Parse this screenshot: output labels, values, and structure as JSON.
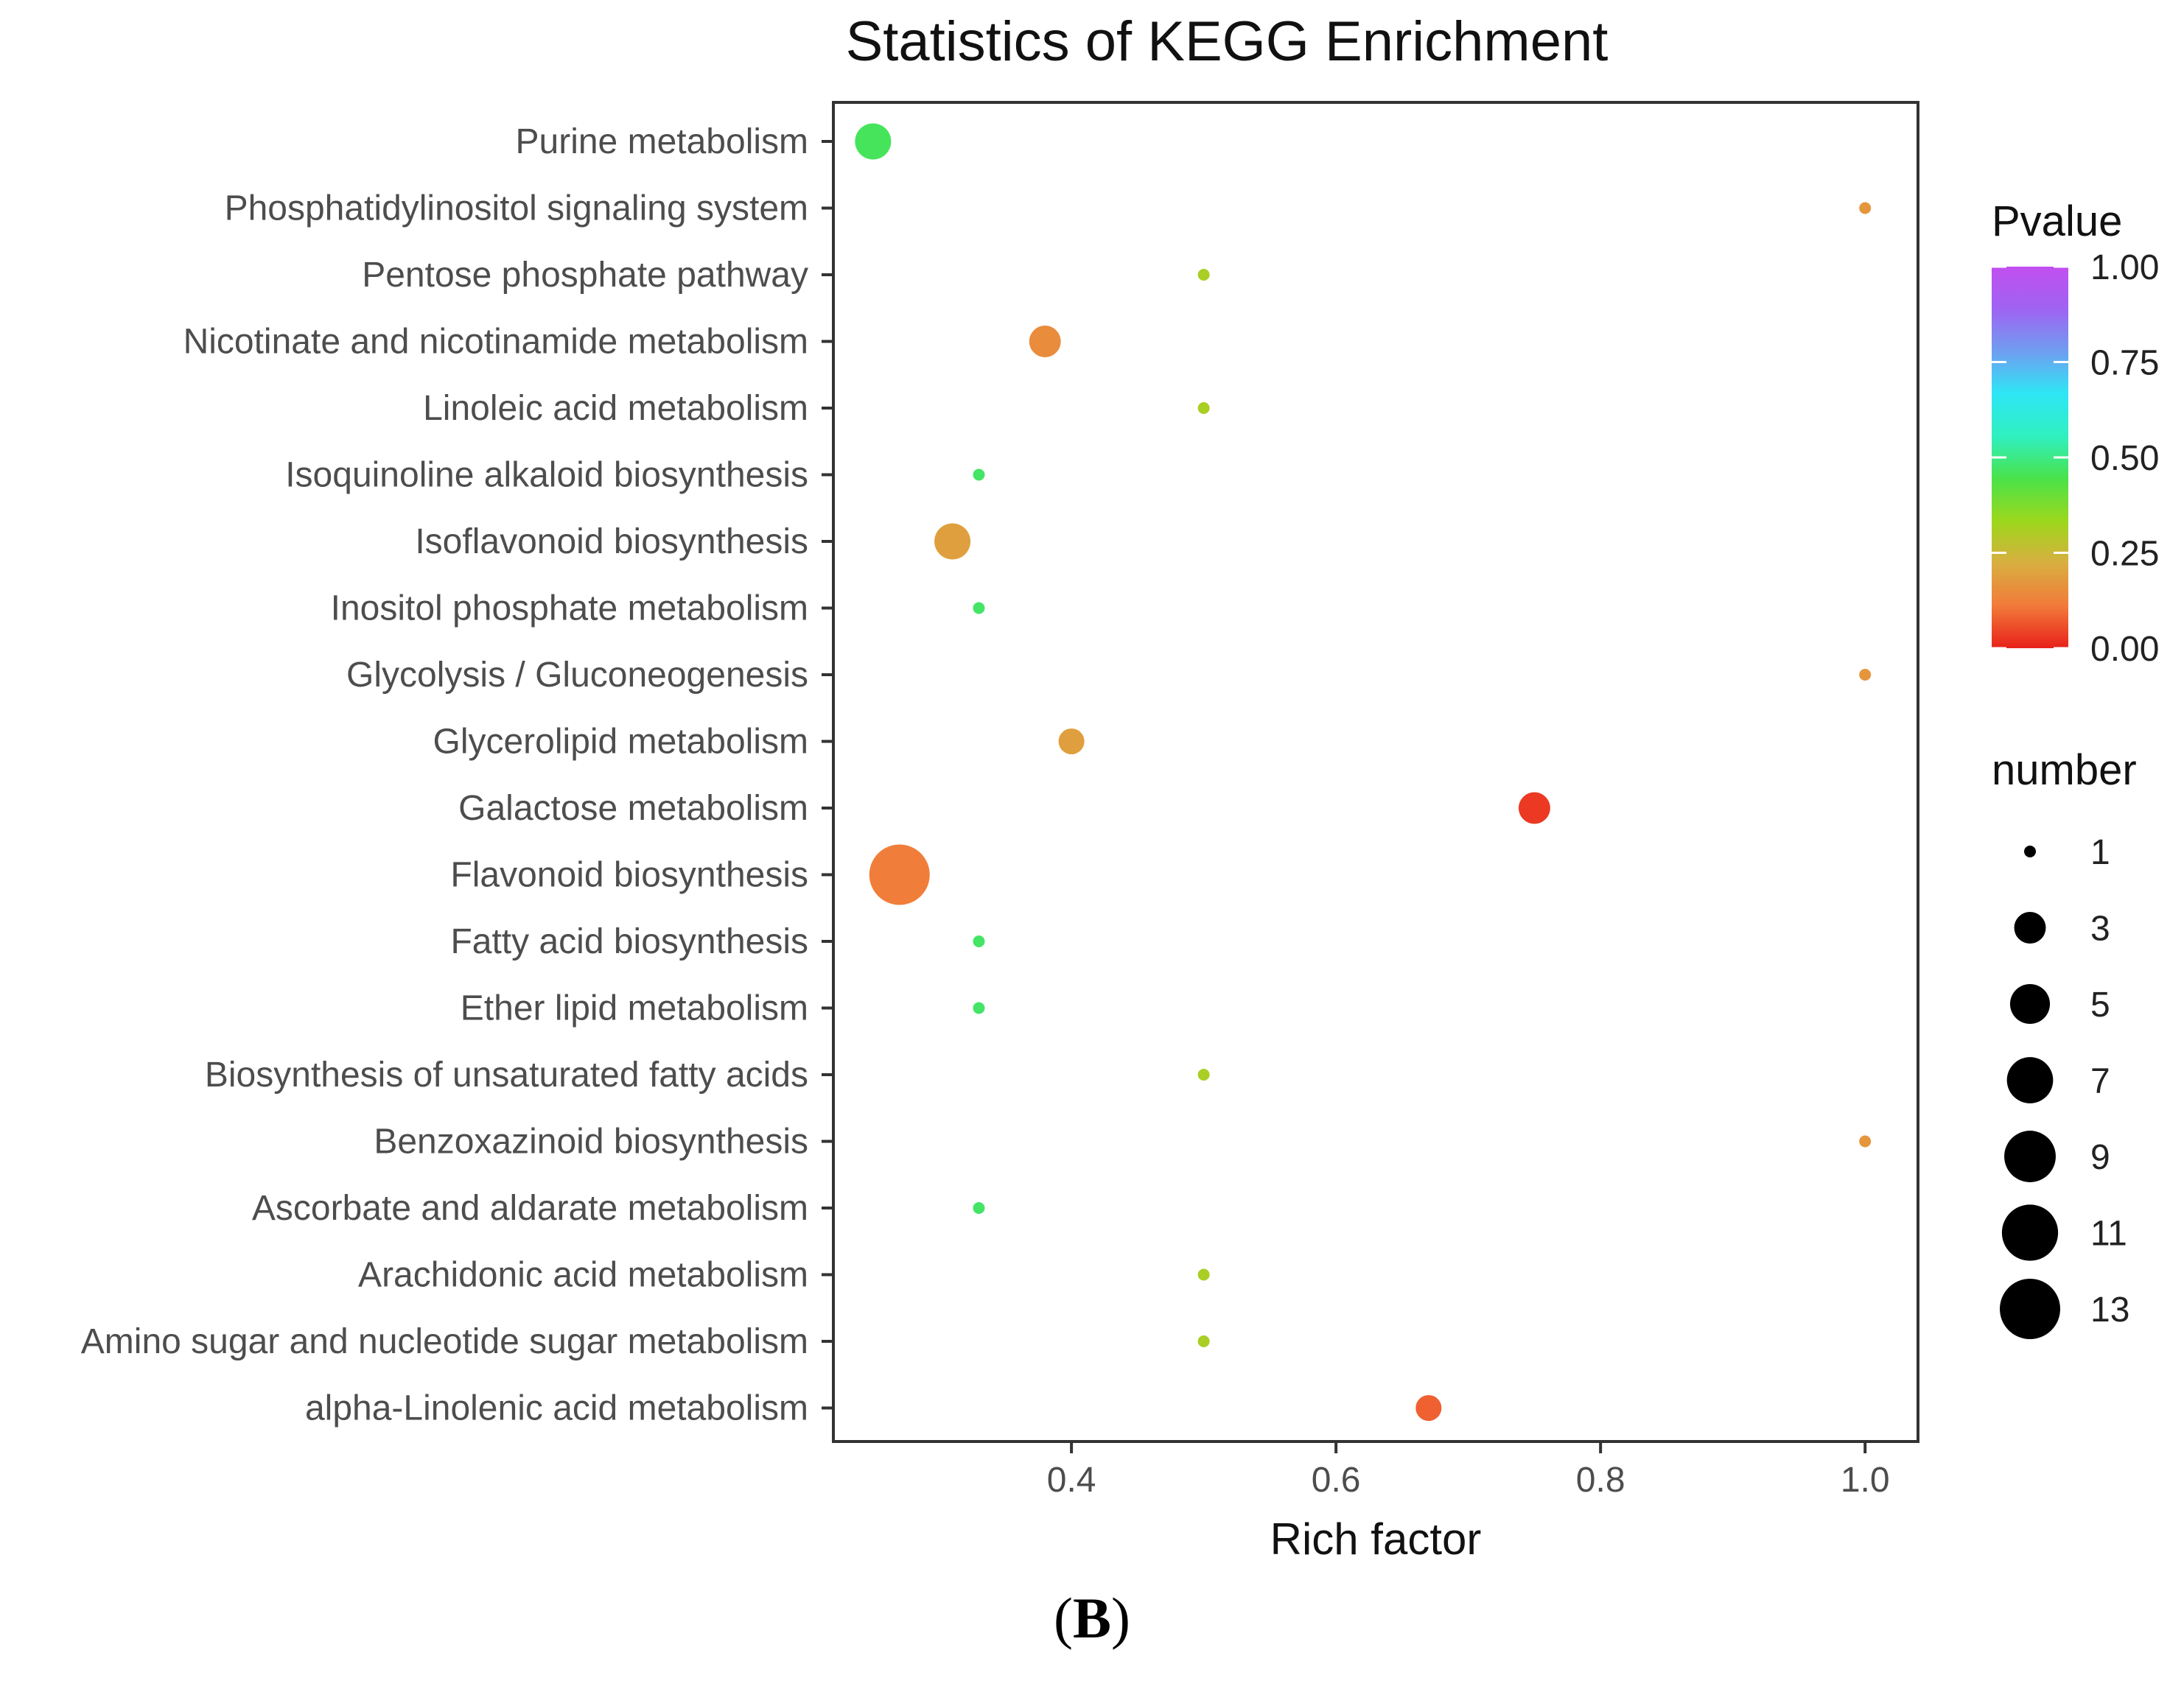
{
  "chart_data": {
    "type": "scatter",
    "title": "Statistics of KEGG Enrichment",
    "xlabel": "Rich factor",
    "ylabel": "",
    "xlim": [
      0.22,
      1.04
    ],
    "x_ticks": [
      0.4,
      0.6,
      0.8,
      1.0
    ],
    "x_tick_labels": [
      "0.4",
      "0.6",
      "0.8",
      "1.0"
    ],
    "grid": false,
    "points": [
      {
        "pathway": "Purine metabolism",
        "rich_factor": 0.25,
        "number": 4,
        "pvalue": 0.46
      },
      {
        "pathway": "Phosphatidylinositol signaling system",
        "rich_factor": 1.0,
        "number": 1,
        "pvalue": 0.17
      },
      {
        "pathway": "Pentose phosphate pathway",
        "rich_factor": 0.5,
        "number": 1,
        "pvalue": 0.31
      },
      {
        "pathway": "Nicotinate and nicotinamide metabolism",
        "rich_factor": 0.38,
        "number": 3,
        "pvalue": 0.15
      },
      {
        "pathway": "Linoleic acid metabolism",
        "rich_factor": 0.5,
        "number": 1,
        "pvalue": 0.31
      },
      {
        "pathway": "Isoquinoline alkaloid biosynthesis",
        "rich_factor": 0.33,
        "number": 1,
        "pvalue": 0.47
      },
      {
        "pathway": "Isoflavonoid biosynthesis",
        "rich_factor": 0.31,
        "number": 4,
        "pvalue": 0.19
      },
      {
        "pathway": "Inositol phosphate metabolism",
        "rich_factor": 0.33,
        "number": 1,
        "pvalue": 0.47
      },
      {
        "pathway": "Glycolysis / Gluconeogenesis",
        "rich_factor": 1.0,
        "number": 1,
        "pvalue": 0.17
      },
      {
        "pathway": "Glycerolipid metabolism",
        "rich_factor": 0.4,
        "number": 2,
        "pvalue": 0.19
      },
      {
        "pathway": "Galactose metabolism",
        "rich_factor": 0.75,
        "number": 3,
        "pvalue": 0.03
      },
      {
        "pathway": "Flavonoid biosynthesis",
        "rich_factor": 0.27,
        "number": 13,
        "pvalue": 0.12
      },
      {
        "pathway": "Fatty acid biosynthesis",
        "rich_factor": 0.33,
        "number": 1,
        "pvalue": 0.47
      },
      {
        "pathway": "Ether lipid metabolism",
        "rich_factor": 0.33,
        "number": 1,
        "pvalue": 0.47
      },
      {
        "pathway": "Biosynthesis of unsaturated fatty acids",
        "rich_factor": 0.5,
        "number": 1,
        "pvalue": 0.31
      },
      {
        "pathway": "Benzoxazinoid biosynthesis",
        "rich_factor": 1.0,
        "number": 1,
        "pvalue": 0.17
      },
      {
        "pathway": "Ascorbate and aldarate metabolism",
        "rich_factor": 0.33,
        "number": 1,
        "pvalue": 0.47
      },
      {
        "pathway": "Arachidonic acid metabolism",
        "rich_factor": 0.5,
        "number": 1,
        "pvalue": 0.31
      },
      {
        "pathway": "Amino sugar and nucleotide sugar metabolism",
        "rich_factor": 0.5,
        "number": 1,
        "pvalue": 0.31
      },
      {
        "pathway": "alpha-Linolenic acid metabolism",
        "rich_factor": 0.67,
        "number": 2,
        "pvalue": 0.08
      }
    ],
    "legend": {
      "color": {
        "title": "Pvalue",
        "range": [
          0.0,
          1.0
        ],
        "ticks": [
          1.0,
          0.75,
          0.5,
          0.25,
          0.0
        ],
        "tick_labels": [
          "1.00",
          "0.75",
          "0.50",
          "0.25",
          "0.00"
        ],
        "gradient_colors": [
          "#e8211a",
          "#f27a3a",
          "#d9ae40",
          "#9cd81c",
          "#4ae24a",
          "#2ff0c0",
          "#2ee6f5",
          "#6f9ef0",
          "#9f63f2",
          "#c24ff0"
        ]
      },
      "size": {
        "title": "number",
        "values": [
          1,
          3,
          5,
          7,
          9,
          11,
          13
        ],
        "labels": [
          "1",
          "3",
          "5",
          "7",
          "9",
          "11",
          "13"
        ],
        "color": "#000000"
      },
      "placement": "right"
    }
  },
  "figure": {
    "panel_label_open": "(",
    "panel_label": "B",
    "panel_label_close": ")"
  }
}
